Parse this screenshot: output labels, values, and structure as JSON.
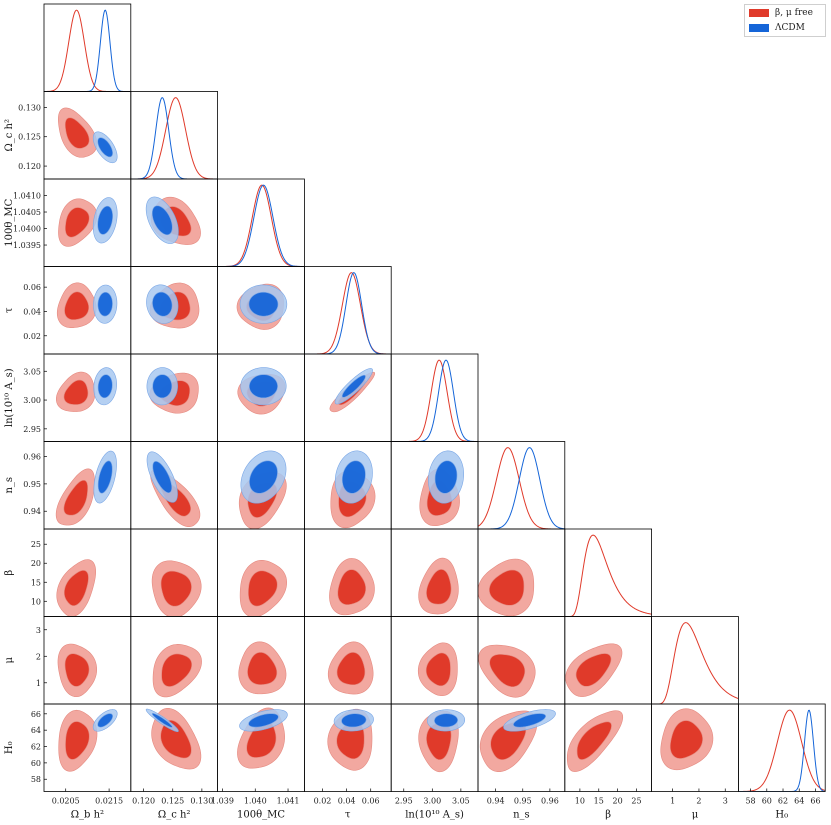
{
  "chart_data": {
    "type": "corner",
    "parameters": [
      {
        "key": "obh2",
        "label": "Ω_b h²",
        "range": [
          0.02,
          0.022
        ],
        "ticks": [
          0.0205,
          0.0215
        ],
        "ticklabels": [
          "0.0205",
          "0.0215"
        ]
      },
      {
        "key": "och2",
        "label": "Ω_c h²",
        "range": [
          0.1178,
          0.1327
        ],
        "ticks": [
          0.12,
          0.125,
          0.13
        ],
        "ticklabels": [
          "0.120",
          "0.125",
          "0.130"
        ]
      },
      {
        "key": "theta",
        "label": "100θ_MC",
        "range": [
          1.03885,
          1.0415
        ],
        "ticks": [
          1.039,
          1.04,
          1.041
        ],
        "ticklabels": [
          "1.039",
          "1.040",
          "1.041"
        ],
        "yticks": [
          1.0395,
          1.04,
          1.0405,
          1.041
        ],
        "yticklabels": [
          "1.0395",
          "1.0400",
          "1.0405",
          "1.0410"
        ]
      },
      {
        "key": "tau",
        "label": "τ",
        "range": [
          0.005,
          0.077
        ],
        "ticks": [
          0.02,
          0.04,
          0.06
        ],
        "ticklabels": [
          "0.02",
          "0.04",
          "0.06"
        ]
      },
      {
        "key": "logA",
        "label": "ln(10¹⁰ A_s)",
        "range": [
          2.928,
          3.08
        ],
        "ticks": [
          2.95,
          3.0,
          3.05
        ],
        "ticklabels": [
          "2.95",
          "3.00",
          "3.05"
        ]
      },
      {
        "key": "ns",
        "label": "n_s",
        "range": [
          0.9335,
          0.9655
        ],
        "ticks": [
          0.94,
          0.95,
          0.96
        ],
        "ticklabels": [
          "0.94",
          "0.95",
          "0.96"
        ]
      },
      {
        "key": "beta",
        "label": "β",
        "range": [
          6,
          29
        ],
        "ticks": [
          10,
          15,
          20,
          25
        ],
        "ticklabels": [
          "10",
          "15",
          "20",
          "25"
        ]
      },
      {
        "key": "mu",
        "label": "μ",
        "range": [
          0.2,
          3.5
        ],
        "ticks": [
          1,
          2,
          3
        ],
        "ticklabels": [
          "1",
          "2",
          "3"
        ]
      },
      {
        "key": "H0",
        "label": "H₀",
        "range": [
          56.5,
          67.2
        ],
        "ticks": [
          58,
          60,
          62,
          64,
          66
        ],
        "ticklabels": [
          "58",
          "60",
          "62",
          "64",
          "66"
        ]
      }
    ],
    "series": [
      {
        "name": "β, μ free",
        "color": "#e03a2a",
        "light": "#f2a8a0",
        "mean": [
          0.02075,
          0.1255,
          1.0402,
          0.044,
          3.012,
          0.9445,
          13.5,
          1.5,
          62.8
        ],
        "sigma": [
          0.00018,
          0.0017,
          0.00029,
          0.0075,
          0.014,
          0.0042,
          3.0,
          0.4,
          1.5
        ],
        "corr": [
          [
            1,
            -0.45,
            0.3,
            0.1,
            0.2,
            0.55,
            0.4,
            -0.1,
            0.2
          ],
          [
            -0.45,
            1,
            -0.3,
            0.05,
            0.1,
            -0.7,
            -0.05,
            0.3,
            -0.4
          ],
          [
            0.3,
            -0.3,
            1,
            0.05,
            0.1,
            0.35,
            0.2,
            -0.05,
            0.3
          ],
          [
            0.1,
            0.05,
            0.05,
            1,
            0.9,
            0.1,
            0.1,
            0.05,
            0.05
          ],
          [
            0.2,
            0.1,
            0.1,
            0.9,
            1,
            0.05,
            0.15,
            0.05,
            0.05
          ],
          [
            0.55,
            -0.7,
            0.35,
            0.1,
            0.05,
            1,
            0.1,
            -0.3,
            0.4
          ],
          [
            0.4,
            -0.05,
            0.2,
            0.1,
            0.15,
            0.1,
            1,
            0.5,
            0.7
          ],
          [
            -0.1,
            0.3,
            -0.05,
            0.05,
            0.05,
            -0.3,
            0.5,
            1,
            0.15
          ],
          [
            0.2,
            -0.4,
            0.3,
            0.05,
            0.05,
            0.4,
            0.7,
            0.15,
            1
          ]
        ]
      },
      {
        "name": "ΛCDM",
        "color": "#1565d8",
        "light": "#a8c8f0",
        "mean": [
          0.02141,
          0.1232,
          1.04025,
          0.046,
          3.024,
          0.9525,
          null,
          null,
          65.2
        ],
        "sigma": [
          0.00011,
          0.0011,
          0.00029,
          0.0065,
          0.013,
          0.0038,
          null,
          null,
          0.55
        ],
        "corr": [
          [
            1,
            -0.6,
            0.3,
            0.1,
            0.15,
            0.5,
            0,
            0,
            0.6
          ],
          [
            -0.6,
            1,
            -0.45,
            -0.05,
            0.05,
            -0.7,
            0,
            0,
            -0.93
          ],
          [
            0.3,
            -0.45,
            1,
            0.05,
            0.05,
            0.3,
            0,
            0,
            0.5
          ],
          [
            0.1,
            -0.05,
            0.05,
            1,
            0.9,
            0.15,
            0,
            0,
            0.1
          ],
          [
            0.15,
            0.05,
            0.05,
            0.9,
            1,
            0.1,
            0,
            0,
            0.05
          ],
          [
            0.5,
            -0.7,
            0.3,
            0.15,
            0.1,
            1,
            0,
            0,
            0.6
          ],
          [
            0,
            0,
            0,
            0,
            0,
            0,
            1,
            0,
            0
          ],
          [
            0,
            0,
            0,
            0,
            0,
            0,
            0,
            1,
            0
          ],
          [
            0.6,
            -0.93,
            0.5,
            0.1,
            0.05,
            0.6,
            0,
            0,
            1
          ]
        ]
      }
    ],
    "legend_position": "top-right",
    "grid": false
  }
}
